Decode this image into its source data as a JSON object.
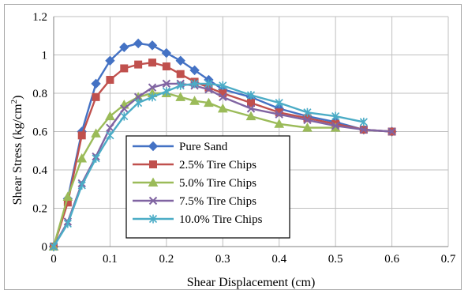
{
  "chart_data": {
    "type": "line",
    "title": "",
    "xlabel": "Shear Displacement (cm)",
    "ylabel": "Shear Stress (kg/cm²)",
    "xlim": [
      0,
      0.7
    ],
    "ylim": [
      0,
      1.2
    ],
    "x_ticks": [
      "0",
      "0.1",
      "0.2",
      "0.3",
      "0.4",
      "0.5",
      "0.6",
      "0.7"
    ],
    "y_ticks": [
      "0",
      "0.2",
      "0.4",
      "0.6",
      "0.8",
      "1",
      "1.2"
    ],
    "grid": "horizontal and vertical",
    "legend_position": "center-left",
    "series": [
      {
        "name": "Pure Sand",
        "color": "#4472c4",
        "marker": "diamond",
        "points": [
          [
            0,
            0
          ],
          [
            0.025,
            0.25
          ],
          [
            0.05,
            0.6
          ],
          [
            0.075,
            0.85
          ],
          [
            0.1,
            0.97
          ],
          [
            0.125,
            1.04
          ],
          [
            0.15,
            1.06
          ],
          [
            0.175,
            1.05
          ],
          [
            0.2,
            1.01
          ],
          [
            0.225,
            0.97
          ],
          [
            0.25,
            0.92
          ],
          [
            0.275,
            0.87
          ],
          [
            0.3,
            0.82
          ],
          [
            0.35,
            0.78
          ],
          [
            0.4,
            0.72
          ],
          [
            0.45,
            0.68
          ],
          [
            0.5,
            0.65
          ],
          [
            0.55,
            0.61
          ],
          [
            0.6,
            0.6
          ]
        ]
      },
      {
        "name": "2.5% Tire Chips",
        "color": "#c0504d",
        "marker": "square",
        "points": [
          [
            0,
            0
          ],
          [
            0.025,
            0.23
          ],
          [
            0.05,
            0.58
          ],
          [
            0.075,
            0.78
          ],
          [
            0.1,
            0.87
          ],
          [
            0.125,
            0.93
          ],
          [
            0.15,
            0.95
          ],
          [
            0.175,
            0.96
          ],
          [
            0.2,
            0.94
          ],
          [
            0.225,
            0.9
          ],
          [
            0.25,
            0.86
          ],
          [
            0.275,
            0.83
          ],
          [
            0.3,
            0.8
          ],
          [
            0.35,
            0.75
          ],
          [
            0.4,
            0.7
          ],
          [
            0.45,
            0.67
          ],
          [
            0.5,
            0.64
          ],
          [
            0.55,
            0.61
          ],
          [
            0.6,
            0.6
          ]
        ]
      },
      {
        "name": "5.0% Tire Chips",
        "color": "#9bbb59",
        "marker": "triangle",
        "points": [
          [
            0,
            0
          ],
          [
            0.025,
            0.26
          ],
          [
            0.05,
            0.46
          ],
          [
            0.075,
            0.59
          ],
          [
            0.1,
            0.68
          ],
          [
            0.125,
            0.74
          ],
          [
            0.15,
            0.78
          ],
          [
            0.175,
            0.8
          ],
          [
            0.2,
            0.8
          ],
          [
            0.225,
            0.78
          ],
          [
            0.25,
            0.76
          ],
          [
            0.275,
            0.75
          ],
          [
            0.3,
            0.72
          ],
          [
            0.35,
            0.68
          ],
          [
            0.4,
            0.64
          ],
          [
            0.45,
            0.62
          ],
          [
            0.5,
            0.62
          ]
        ]
      },
      {
        "name": "7.5% Tire Chips",
        "color": "#8064a2",
        "marker": "x",
        "points": [
          [
            0,
            0
          ],
          [
            0.025,
            0.13
          ],
          [
            0.05,
            0.33
          ],
          [
            0.075,
            0.47
          ],
          [
            0.1,
            0.62
          ],
          [
            0.125,
            0.72
          ],
          [
            0.15,
            0.78
          ],
          [
            0.175,
            0.83
          ],
          [
            0.2,
            0.85
          ],
          [
            0.225,
            0.85
          ],
          [
            0.25,
            0.84
          ],
          [
            0.275,
            0.82
          ],
          [
            0.3,
            0.78
          ],
          [
            0.35,
            0.72
          ],
          [
            0.4,
            0.69
          ],
          [
            0.45,
            0.66
          ],
          [
            0.5,
            0.63
          ],
          [
            0.55,
            0.61
          ],
          [
            0.6,
            0.6
          ]
        ]
      },
      {
        "name": "10.0% Tire Chips",
        "color": "#4bacc6",
        "marker": "star",
        "points": [
          [
            0,
            0
          ],
          [
            0.025,
            0.12
          ],
          [
            0.05,
            0.32
          ],
          [
            0.075,
            0.46
          ],
          [
            0.1,
            0.58
          ],
          [
            0.125,
            0.68
          ],
          [
            0.15,
            0.75
          ],
          [
            0.175,
            0.78
          ],
          [
            0.2,
            0.81
          ],
          [
            0.225,
            0.84
          ],
          [
            0.25,
            0.85
          ],
          [
            0.275,
            0.85
          ],
          [
            0.3,
            0.84
          ],
          [
            0.35,
            0.79
          ],
          [
            0.4,
            0.75
          ],
          [
            0.45,
            0.7
          ],
          [
            0.5,
            0.68
          ],
          [
            0.55,
            0.65
          ]
        ]
      }
    ]
  }
}
